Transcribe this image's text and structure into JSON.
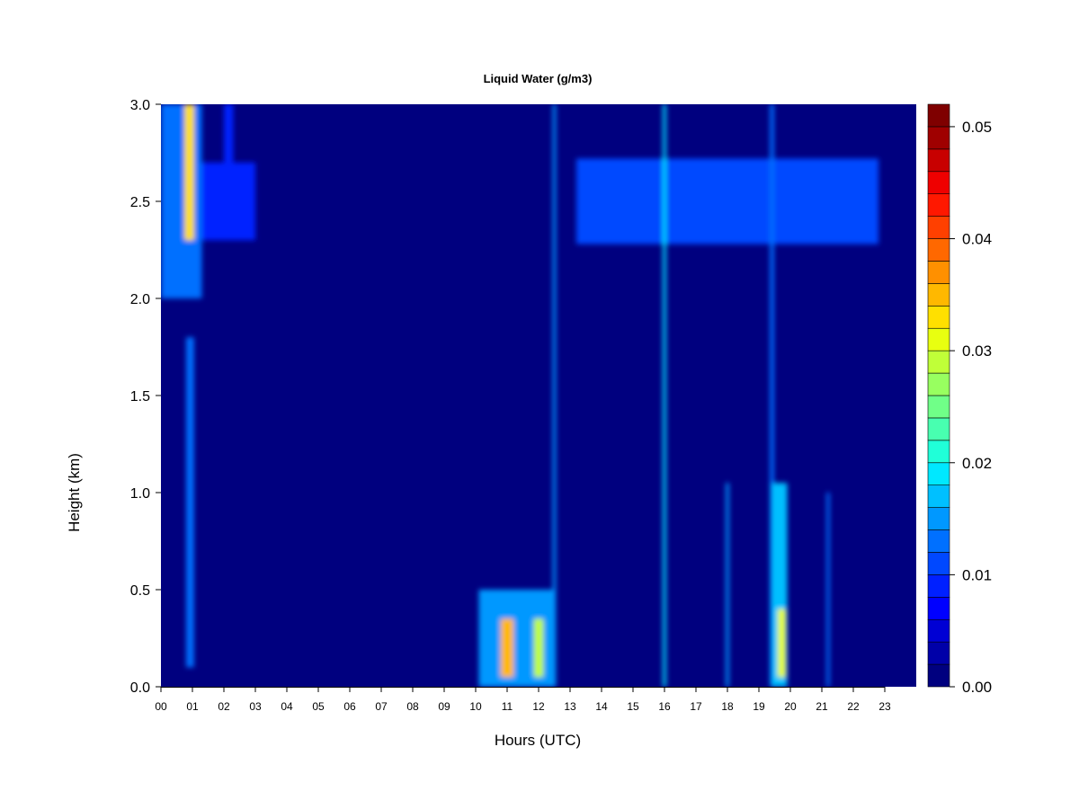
{
  "chart_data": {
    "type": "heatmap",
    "title": "Liquid Water (g/m3)",
    "xlabel": "Hours (UTC)",
    "ylabel": "Height (km)",
    "xlim": [
      0,
      24
    ],
    "ylim": [
      0.0,
      3.0
    ],
    "x_ticks": [
      "00",
      "01",
      "02",
      "03",
      "04",
      "05",
      "06",
      "07",
      "08",
      "09",
      "10",
      "11",
      "12",
      "13",
      "14",
      "15",
      "16",
      "17",
      "18",
      "19",
      "20",
      "21",
      "22",
      "23"
    ],
    "y_ticks": [
      "0.0",
      "0.5",
      "1.0",
      "1.5",
      "2.0",
      "2.5",
      "3.0"
    ],
    "background_value": 0.0,
    "colorbar": {
      "min": 0.0,
      "max": 0.052,
      "ticks": [
        "0.00",
        "0.01",
        "0.02",
        "0.03",
        "0.04",
        "0.05"
      ],
      "colors": [
        "#00007f",
        "#0000a8",
        "#0000d4",
        "#0000ff",
        "#0020ff",
        "#0048ff",
        "#0070ff",
        "#0098ff",
        "#00c0ff",
        "#00e8ff",
        "#20ffd8",
        "#48ffb0",
        "#70ff88",
        "#98ff60",
        "#c0ff38",
        "#e8ff10",
        "#ffe000",
        "#ffb800",
        "#ff9000",
        "#ff6800",
        "#ff4000",
        "#ff1800",
        "#ef0000",
        "#c80000",
        "#9f0000",
        "#7f0000"
      ]
    },
    "features": [
      {
        "name": "early upper cloud",
        "x": [
          0.0,
          1.3
        ],
        "y": [
          2.0,
          3.0
        ],
        "value": 0.012
      },
      {
        "name": "early upper core",
        "x": [
          0.75,
          1.05
        ],
        "y": [
          2.3,
          3.0
        ],
        "value": 0.032
      },
      {
        "name": "early layer extension",
        "x": [
          1.3,
          3.0
        ],
        "y": [
          2.3,
          2.7
        ],
        "value": 0.009
      },
      {
        "name": "column 02h",
        "x": [
          2.0,
          2.3
        ],
        "y": [
          2.7,
          3.0
        ],
        "value": 0.009
      },
      {
        "name": "column 01h",
        "x": [
          0.8,
          1.05
        ],
        "y": [
          0.1,
          1.8
        ],
        "value": 0.012
      },
      {
        "name": "afternoon cloud layer",
        "x": [
          13.2,
          22.8
        ],
        "y": [
          2.28,
          2.72
        ],
        "value": 0.011
      },
      {
        "name": "morning low cloud",
        "x": [
          10.1,
          12.5
        ],
        "y": [
          0.0,
          0.5
        ],
        "value": 0.014
      },
      {
        "name": "morning low core 1",
        "x": [
          10.8,
          11.2
        ],
        "y": [
          0.05,
          0.35
        ],
        "value": 0.034
      },
      {
        "name": "morning low core 2",
        "x": [
          11.85,
          12.15
        ],
        "y": [
          0.05,
          0.35
        ],
        "value": 0.028
      },
      {
        "name": "spike 12.5h",
        "x": [
          12.45,
          12.55
        ],
        "y": [
          0.0,
          3.0
        ],
        "value": 0.015
      },
      {
        "name": "spike 16h",
        "x": [
          15.95,
          16.05
        ],
        "y": [
          0.0,
          3.0
        ],
        "value": 0.018
      },
      {
        "name": "spike 19.4h",
        "x": [
          19.35,
          19.48
        ],
        "y": [
          0.0,
          3.0
        ],
        "value": 0.012
      },
      {
        "name": "low cloud 19.5-19.9h",
        "x": [
          19.4,
          19.9
        ],
        "y": [
          0.0,
          1.05
        ],
        "value": 0.016
      },
      {
        "name": "low cloud core 19.7h",
        "x": [
          19.6,
          19.85
        ],
        "y": [
          0.05,
          0.4
        ],
        "value": 0.03
      },
      {
        "name": "spike 18h",
        "x": [
          17.95,
          18.05
        ],
        "y": [
          0.0,
          1.05
        ],
        "value": 0.014
      },
      {
        "name": "spike 21.2h",
        "x": [
          21.15,
          21.25
        ],
        "y": [
          0.0,
          1.0
        ],
        "value": 0.012
      }
    ]
  }
}
